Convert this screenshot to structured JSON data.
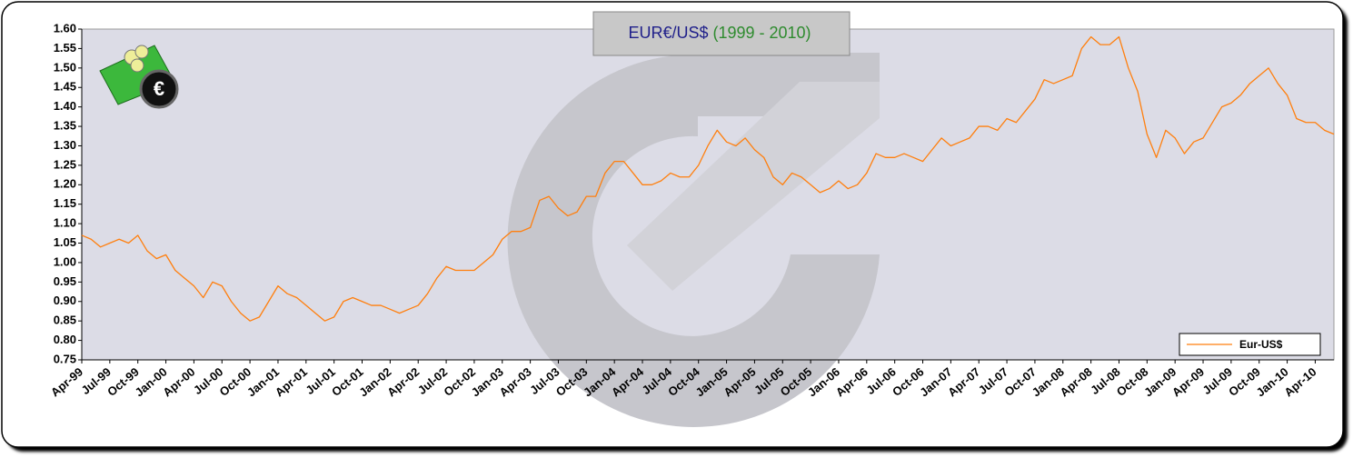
{
  "chart_data": {
    "type": "line",
    "title": "EUR€/US$",
    "subtitle": "(1999 - 2010)",
    "categories": [
      "Apr-99",
      null,
      null,
      "Jul-99",
      null,
      null,
      "Oct-99",
      null,
      null,
      "Jan-00",
      null,
      null,
      "Apr-00",
      null,
      null,
      "Jul-00",
      null,
      null,
      "Oct-00",
      null,
      null,
      "Jan-01",
      null,
      null,
      "Apr-01",
      null,
      null,
      "Jul-01",
      null,
      null,
      "Oct-01",
      null,
      null,
      "Jan-02",
      null,
      null,
      "Apr-02",
      null,
      null,
      "Jul-02",
      null,
      null,
      "Oct-02",
      null,
      null,
      "Jan-03",
      null,
      null,
      "Apr-03",
      null,
      null,
      "Jul-03",
      null,
      null,
      "Oct-03",
      null,
      null,
      "Jan-04",
      null,
      null,
      "Apr-04",
      null,
      null,
      "Jul-04",
      null,
      null,
      "Oct-04",
      null,
      null,
      "Jan-05",
      null,
      null,
      "Apr-05",
      null,
      null,
      "Jul-05",
      null,
      null,
      "Oct-05",
      null,
      null,
      "Jan-06",
      null,
      null,
      "Apr-06",
      null,
      null,
      "Jul-06",
      null,
      null,
      "Oct-06",
      null,
      null,
      "Jan-07",
      null,
      null,
      "Apr-07",
      null,
      null,
      "Jul-07",
      null,
      null,
      "Oct-07",
      null,
      null,
      "Jan-08",
      null,
      null,
      "Apr-08",
      null,
      null,
      "Jul-08",
      null,
      null,
      "Oct-08",
      null,
      null,
      "Jan-09",
      null,
      null,
      "Apr-09",
      null,
      null,
      "Jul-09",
      null,
      null,
      "Oct-09",
      null,
      null,
      "Jan-10",
      null,
      null,
      "Apr-10",
      null,
      null
    ],
    "series": [
      {
        "name": "Eur-US$",
        "color": "#ff7f0e",
        "values": [
          1.07,
          1.06,
          1.04,
          1.05,
          1.06,
          1.05,
          1.07,
          1.03,
          1.01,
          1.02,
          0.98,
          0.96,
          0.94,
          0.91,
          0.95,
          0.94,
          0.9,
          0.87,
          0.85,
          0.86,
          0.9,
          0.94,
          0.92,
          0.91,
          0.89,
          0.87,
          0.85,
          0.86,
          0.9,
          0.91,
          0.9,
          0.89,
          0.89,
          0.88,
          0.87,
          0.88,
          0.89,
          0.92,
          0.96,
          0.99,
          0.98,
          0.98,
          0.98,
          1.0,
          1.02,
          1.06,
          1.08,
          1.08,
          1.09,
          1.16,
          1.17,
          1.14,
          1.12,
          1.13,
          1.17,
          1.17,
          1.23,
          1.26,
          1.26,
          1.23,
          1.2,
          1.2,
          1.21,
          1.23,
          1.22,
          1.22,
          1.25,
          1.3,
          1.34,
          1.31,
          1.3,
          1.32,
          1.29,
          1.27,
          1.22,
          1.2,
          1.23,
          1.22,
          1.2,
          1.18,
          1.19,
          1.21,
          1.19,
          1.2,
          1.23,
          1.28,
          1.27,
          1.27,
          1.28,
          1.27,
          1.26,
          1.29,
          1.32,
          1.3,
          1.31,
          1.32,
          1.35,
          1.35,
          1.34,
          1.37,
          1.36,
          1.39,
          1.42,
          1.47,
          1.46,
          1.47,
          1.48,
          1.55,
          1.58,
          1.56,
          1.56,
          1.58,
          1.5,
          1.44,
          1.33,
          1.27,
          1.34,
          1.32,
          1.28,
          1.31,
          1.32,
          1.36,
          1.4,
          1.41,
          1.43,
          1.46,
          1.48,
          1.5,
          1.46,
          1.43,
          1.37,
          1.36,
          1.36,
          1.34,
          1.33
        ]
      }
    ],
    "ylim": [
      0.75,
      1.6
    ],
    "yticks": [
      0.75,
      {
        "value": 0.8,
        "label": "0.80"
      },
      0.85,
      {
        "value": 0.9,
        "label": "0.90"
      },
      0.95,
      {
        "value": 1,
        "label": "1.00"
      },
      1.05,
      {
        "value": 1.1,
        "label": "1.10"
      },
      1.15,
      {
        "value": 1.2,
        "label": "1.20"
      },
      1.25,
      {
        "value": 1.3,
        "label": "1.30"
      },
      1.35,
      {
        "value": 1.4,
        "label": "1.40"
      },
      1.45,
      {
        "value": 1.5,
        "label": "1.50"
      },
      1.55,
      {
        "value": 1.6,
        "label": "1.60"
      }
    ],
    "grid": false,
    "legend": "lower right"
  }
}
